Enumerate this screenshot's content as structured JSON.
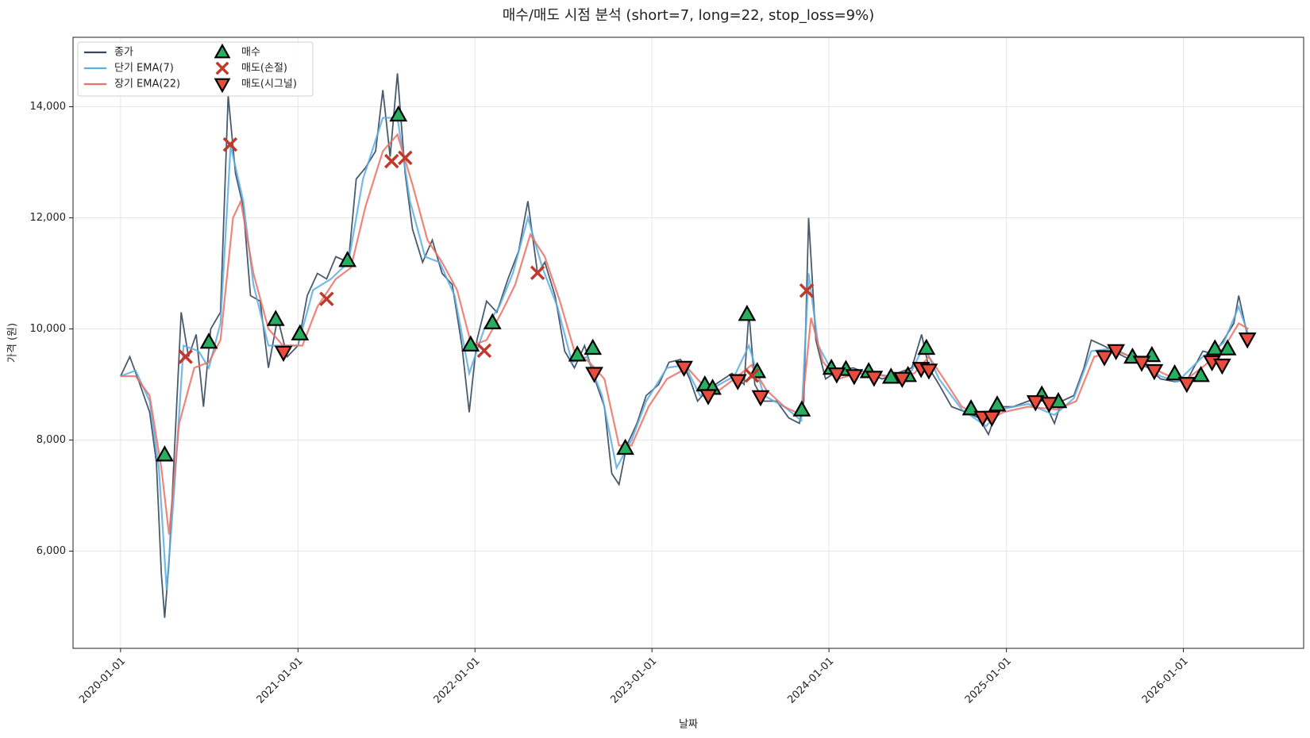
{
  "chart_data": {
    "type": "line",
    "title": "매수/매도 시점 분석 (short=7, long=22, stop_loss=9%)",
    "x_label": "날짜",
    "y_label": "가격 (원)",
    "xlim": [
      "2019-09-25",
      "2026-09-06"
    ],
    "xticks": [
      "2020-01-01",
      "2021-01-01",
      "2022-01-01",
      "2023-01-01",
      "2024-01-01",
      "2025-01-01",
      "2026-01-01"
    ],
    "ylim": [
      4250,
      15250
    ],
    "yticks": [
      {
        "value": 6000,
        "label": "6,000"
      },
      {
        "value": 8000,
        "label": "8,000"
      },
      {
        "value": 10000,
        "label": "10,000"
      },
      {
        "value": 12000,
        "label": "12,000"
      },
      {
        "value": 14000,
        "label": "14,000"
      }
    ],
    "grid": true,
    "legend": "upper left",
    "series": [
      {
        "name": "종가",
        "color": "#34495e",
        "marker": "line",
        "x": [
          "2020-01-01",
          "2020-01-20",
          "2020-02-10",
          "2020-03-01",
          "2020-03-15",
          "2020-03-25",
          "2020-04-01",
          "2020-04-10",
          "2020-04-25",
          "2020-05-05",
          "2020-05-20",
          "2020-06-05",
          "2020-06-20",
          "2020-07-05",
          "2020-07-25",
          "2020-08-10",
          "2020-08-25",
          "2020-09-10",
          "2020-09-25",
          "2020-10-15",
          "2020-11-01",
          "2020-11-20",
          "2020-12-10",
          "2021-01-01",
          "2021-01-20",
          "2021-02-10",
          "2021-03-01",
          "2021-03-20",
          "2021-04-15",
          "2021-05-01",
          "2021-05-20",
          "2021-06-10",
          "2021-06-25",
          "2021-07-10",
          "2021-07-25",
          "2021-08-10",
          "2021-08-25",
          "2021-09-15",
          "2021-10-05",
          "2021-10-25",
          "2021-11-15",
          "2021-12-05",
          "2021-12-20",
          "2022-01-05",
          "2022-01-25",
          "2022-02-15",
          "2022-03-10",
          "2022-04-01",
          "2022-04-20",
          "2022-05-10",
          "2022-05-25",
          "2022-06-15",
          "2022-07-05",
          "2022-07-25",
          "2022-08-15",
          "2022-09-05",
          "2022-09-25",
          "2022-10-10",
          "2022-10-25",
          "2022-11-10",
          "2022-12-01",
          "2022-12-20",
          "2023-01-15",
          "2023-02-05",
          "2023-03-01",
          "2023-03-20",
          "2023-04-05",
          "2023-04-25",
          "2023-05-20",
          "2023-06-15",
          "2023-07-10",
          "2023-07-20",
          "2023-08-01",
          "2023-08-20",
          "2023-09-15",
          "2023-10-10",
          "2023-11-01",
          "2023-11-10",
          "2023-11-20",
          "2023-12-05",
          "2023-12-25",
          "2024-01-20",
          "2024-02-20",
          "2024-03-20",
          "2024-04-20",
          "2024-05-20",
          "2024-06-20",
          "2024-07-10",
          "2024-07-25",
          "2024-08-15",
          "2024-09-10",
          "2024-10-10",
          "2024-11-05",
          "2024-11-25",
          "2024-12-15",
          "2025-01-15",
          "2025-02-15",
          "2025-03-10",
          "2025-03-25",
          "2025-04-10",
          "2025-04-25",
          "2025-05-20",
          "2025-06-10",
          "2025-06-25",
          "2025-07-20",
          "2025-08-10",
          "2025-09-01",
          "2025-09-25",
          "2025-10-20",
          "2025-11-15",
          "2025-12-15",
          "2026-01-10",
          "2026-02-10",
          "2026-03-05",
          "2026-03-25",
          "2026-04-15",
          "2026-04-25",
          "2026-05-15"
        ],
        "values": [
          9150,
          9500,
          9000,
          8500,
          7600,
          5600,
          4800,
          5800,
          8500,
          10300,
          9500,
          9900,
          8600,
          10000,
          10300,
          14200,
          12800,
          12200,
          10600,
          10500,
          9300,
          10200,
          9500,
          9700,
          10600,
          11000,
          10900,
          11300,
          11200,
          12700,
          12900,
          13200,
          14300,
          13100,
          14600,
          12800,
          11800,
          11200,
          11600,
          11000,
          10800,
          9700,
          8500,
          9800,
          10500,
          10300,
          10900,
          11400,
          12300,
          11000,
          11200,
          10600,
          9600,
          9300,
          9700,
          9100,
          8600,
          7400,
          7200,
          7900,
          8300,
          8800,
          9000,
          9400,
          9450,
          9100,
          8700,
          8900,
          9050,
          9200,
          9000,
          10300,
          9000,
          8700,
          8700,
          8400,
          8300,
          8700,
          12000,
          9800,
          9100,
          9250,
          9300,
          9200,
          9100,
          9200,
          9300,
          9900,
          9300,
          9000,
          8600,
          8500,
          8400,
          8100,
          8600,
          8600,
          8700,
          8800,
          8600,
          8300,
          8700,
          8800,
          9300,
          9800,
          9700,
          9600,
          9500,
          9400,
          9300,
          9100,
          9050,
          9100,
          9600,
          9550,
          9800,
          10100,
          10600,
          9800
        ]
      },
      {
        "name": "단기 EMA(7)",
        "color": "#5dade2",
        "marker": "line",
        "x": [
          "2020-01-01",
          "2020-02-01",
          "2020-03-01",
          "2020-03-20",
          "2020-04-05",
          "2020-04-20",
          "2020-05-10",
          "2020-06-10",
          "2020-07-01",
          "2020-07-25",
          "2020-08-15",
          "2020-09-10",
          "2020-10-01",
          "2020-11-01",
          "2020-12-01",
          "2021-01-01",
          "2021-02-01",
          "2021-03-10",
          "2021-04-15",
          "2021-05-15",
          "2021-06-25",
          "2021-07-25",
          "2021-08-20",
          "2021-09-20",
          "2021-10-20",
          "2021-11-20",
          "2021-12-20",
          "2022-01-20",
          "2022-02-20",
          "2022-03-20",
          "2022-04-20",
          "2022-05-20",
          "2022-06-20",
          "2022-07-20",
          "2022-08-20",
          "2022-09-20",
          "2022-10-20",
          "2022-11-20",
          "2022-12-20",
          "2023-02-01",
          "2023-03-10",
          "2023-04-10",
          "2023-05-20",
          "2023-06-20",
          "2023-07-20",
          "2023-08-20",
          "2023-10-01",
          "2023-11-05",
          "2023-11-20",
          "2023-12-10",
          "2024-01-10",
          "2024-03-01",
          "2024-05-01",
          "2024-06-20",
          "2024-07-15",
          "2024-08-15",
          "2024-10-01",
          "2024-11-20",
          "2024-12-20",
          "2025-02-15",
          "2025-04-10",
          "2025-05-20",
          "2025-06-25",
          "2025-08-10",
          "2025-09-25",
          "2025-11-15",
          "2025-12-20",
          "2026-02-10",
          "2026-03-25",
          "2026-04-25",
          "2026-05-15"
        ],
        "values": [
          9150,
          9250,
          8700,
          7500,
          5300,
          7000,
          9700,
          9600,
          9300,
          10100,
          13300,
          12300,
          10800,
          9700,
          9700,
          9700,
          10700,
          10900,
          11200,
          12700,
          13800,
          13800,
          12300,
          11300,
          11200,
          10600,
          9200,
          10000,
          10400,
          11000,
          12000,
          11100,
          10400,
          9400,
          9500,
          8800,
          7500,
          8000,
          8700,
          9300,
          9350,
          8800,
          9000,
          9150,
          9700,
          8800,
          8600,
          8350,
          11000,
          9700,
          9200,
          9250,
          9150,
          9250,
          9700,
          9100,
          8550,
          8250,
          8550,
          8650,
          8450,
          8750,
          9600,
          9650,
          9450,
          9150,
          9050,
          9500,
          9750,
          10400,
          9900
        ]
      },
      {
        "name": "장기 EMA(22)",
        "color": "#ec7063",
        "marker": "line",
        "x": [
          "2020-01-01",
          "2020-02-01",
          "2020-03-01",
          "2020-03-25",
          "2020-04-10",
          "2020-05-01",
          "2020-06-01",
          "2020-07-01",
          "2020-07-25",
          "2020-08-20",
          "2020-09-05",
          "2020-10-01",
          "2020-11-01",
          "2020-12-01",
          "2021-01-10",
          "2021-02-10",
          "2021-03-20",
          "2021-04-20",
          "2021-05-20",
          "2021-06-25",
          "2021-07-25",
          "2021-08-25",
          "2021-09-25",
          "2021-10-25",
          "2021-11-25",
          "2021-12-25",
          "2022-01-25",
          "2022-02-25",
          "2022-03-25",
          "2022-04-25",
          "2022-05-25",
          "2022-06-25",
          "2022-07-25",
          "2022-08-25",
          "2022-09-25",
          "2022-10-25",
          "2022-11-20",
          "2022-12-25",
          "2023-02-01",
          "2023-03-15",
          "2023-04-15",
          "2023-05-20",
          "2023-06-20",
          "2023-07-25",
          "2023-08-25",
          "2023-10-01",
          "2023-11-05",
          "2023-11-25",
          "2023-12-20",
          "2024-01-20",
          "2024-03-01",
          "2024-05-01",
          "2024-06-25",
          "2024-07-25",
          "2024-08-25",
          "2024-10-01",
          "2024-11-25",
          "2024-12-25",
          "2025-02-15",
          "2025-04-15",
          "2025-05-25",
          "2025-07-01",
          "2025-08-15",
          "2025-10-01",
          "2025-11-20",
          "2026-01-01",
          "2026-02-15",
          "2026-03-25",
          "2026-04-25",
          "2026-05-15"
        ],
        "values": [
          9150,
          9150,
          8800,
          7500,
          6300,
          8300,
          9300,
          9400,
          9800,
          12000,
          12300,
          11000,
          10000,
          9700,
          9700,
          10400,
          10900,
          11100,
          12200,
          13200,
          13500,
          12600,
          11600,
          11200,
          10700,
          9700,
          9800,
          10300,
          10800,
          11700,
          11300,
          10500,
          9600,
          9400,
          9100,
          7900,
          7900,
          8600,
          9100,
          9300,
          9000,
          8900,
          9100,
          9350,
          8900,
          8600,
          8450,
          10200,
          9400,
          9100,
          9200,
          9150,
          9200,
          9500,
          9100,
          8600,
          8350,
          8500,
          8600,
          8550,
          8700,
          9500,
          9600,
          9450,
          9200,
          9050,
          9350,
          9650,
          10100,
          10000
        ]
      },
      {
        "name": "매수",
        "color": "#27ae60",
        "marker": "triangle-up",
        "x": [
          "2020-04-01",
          "2020-07-01",
          "2020-11-16",
          "2021-01-05",
          "2021-04-13",
          "2021-07-27",
          "2021-12-23",
          "2022-02-06",
          "2022-07-31",
          "2022-09-01",
          "2022-11-07",
          "2023-04-20",
          "2023-05-06",
          "2023-07-16",
          "2023-08-06",
          "2023-11-06",
          "2024-01-06",
          "2024-02-05",
          "2024-03-23",
          "2024-05-08",
          "2024-06-12",
          "2024-07-20",
          "2024-10-20",
          "2024-12-13",
          "2025-03-15",
          "2025-04-18",
          "2025-09-18",
          "2025-10-28",
          "2025-12-14",
          "2026-02-06",
          "2026-03-07",
          "2026-04-02"
        ],
        "values": [
          7730,
          9760,
          10170,
          9910,
          11230,
          13850,
          9710,
          10110,
          9530,
          9650,
          7850,
          8990,
          8930,
          10260,
          9230,
          8540,
          9290,
          9270,
          9230,
          9130,
          9160,
          9650,
          8560,
          8630,
          8810,
          8690,
          9490,
          9520,
          9190,
          9160,
          9640,
          9640
        ]
      },
      {
        "name": "매도(손절)",
        "color": "#c0392b",
        "marker": "x",
        "x": [
          "2020-05-14",
          "2020-08-14",
          "2021-03-01",
          "2021-07-13",
          "2021-08-10",
          "2022-01-20",
          "2022-05-10",
          "2023-07-26",
          "2023-11-16"
        ],
        "values": [
          9500,
          13320,
          10540,
          13020,
          13080,
          9610,
          11010,
          9160,
          10690
        ]
      },
      {
        "name": "매도(시그널)",
        "color": "#e74c3c",
        "marker": "triangle-down",
        "x": [
          "2020-12-02",
          "2022-09-04",
          "2023-03-08",
          "2023-04-27",
          "2023-06-27",
          "2023-08-13",
          "2024-01-17",
          "2024-02-22",
          "2024-04-03",
          "2024-05-31",
          "2024-07-09",
          "2024-07-25",
          "2024-11-13",
          "2024-12-02",
          "2025-03-02",
          "2025-03-30",
          "2025-07-22",
          "2025-08-15",
          "2025-10-07",
          "2025-11-02",
          "2026-01-08",
          "2026-03-01",
          "2026-03-22",
          "2026-05-13"
        ],
        "values": [
          9580,
          9200,
          9310,
          8800,
          9070,
          8780,
          9190,
          9160,
          9130,
          9110,
          9290,
          9260,
          8410,
          8410,
          8690,
          8660,
          9500,
          9610,
          9400,
          9250,
          9020,
          9410,
          9350,
          9820
        ]
      }
    ]
  }
}
